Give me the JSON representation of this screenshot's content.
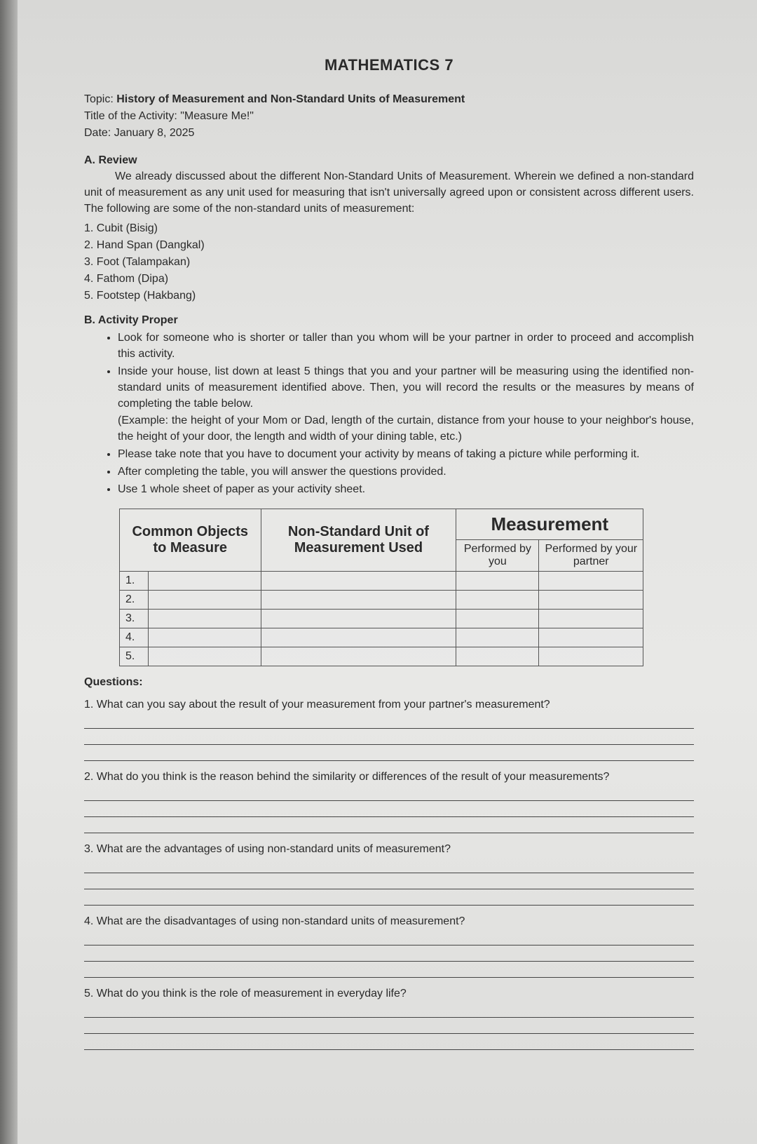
{
  "title": "MATHEMATICS 7",
  "meta": {
    "topic_label": "Topic:",
    "topic": "History of Measurement and Non-Standard Units of Measurement",
    "activity_label": "Title of the Activity:",
    "activity": "\"Measure Me!\"",
    "date_label": "Date:",
    "date": "January 8, 2025"
  },
  "review": {
    "heading": "A. Review",
    "paragraph": "We already discussed about the different Non-Standard Units of Measurement. Wherein we defined a non-standard unit of measurement as any unit used for measuring that isn't universally agreed upon or consistent across different users. The following are some of the non-standard units of measurement:",
    "items": [
      "1. Cubit (Bisig)",
      "2. Hand Span (Dangkal)",
      "3. Foot (Talampakan)",
      "4. Fathom (Dipa)",
      "5. Footstep (Hakbang)"
    ]
  },
  "activity": {
    "heading": "B. Activity Proper",
    "bullets": [
      "Look for someone who is shorter or taller than you whom will be your partner in order to proceed and accomplish this activity.",
      "Inside your house, list down at least 5 things that you and your partner will be measuring using the identified non-standard units of measurement identified above. Then, you will record the results or the measures by means of completing the table below.",
      "Please take note that you have to document your activity by means of taking a picture while performing it.",
      "After completing the table, you will answer the questions provided.",
      "Use 1 whole sheet of paper as your activity sheet."
    ],
    "example": "(Example: the height of your Mom or Dad, length of the curtain, distance from your house to your neighbor's house, the height of your door, the length and width of your dining table, etc.)"
  },
  "table": {
    "col1": "Common Objects to Measure",
    "col2": "Non-Standard Unit of Measurement Used",
    "col3": "Measurement",
    "sub1": "Performed by you",
    "sub2": "Performed by your partner",
    "rows": [
      "1.",
      "2.",
      "3.",
      "4.",
      "5."
    ]
  },
  "questions": {
    "heading": "Questions:",
    "items": [
      "1. What can you say about the result of your measurement from your partner's measurement?",
      "2. What do you think is the reason behind the similarity or differences of the result of your measurements?",
      "3. What are the advantages of using non-standard units of measurement?",
      "4. What are the disadvantages of using non-standard units of measurement?",
      "5. What do you think is the role of measurement in everyday life?"
    ]
  }
}
